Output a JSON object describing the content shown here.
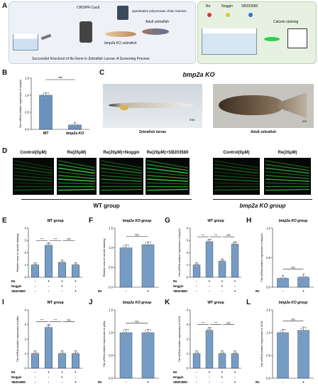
{
  "panels": {
    "A": "A",
    "B": "B",
    "C": "C",
    "D": "D",
    "E": "E",
    "F": "F",
    "G": "G",
    "H": "H",
    "I": "I",
    "J": "J",
    "K": "K",
    "L": "L"
  },
  "panelA": {
    "crispr": "CRISPR-Cas9",
    "qpcr": "quantitative polymerase chain reaction",
    "ko_zebrafish": "bmp2a KO zebrafish",
    "adult": "Adult zebrafish",
    "caption": "Successful Knockout of tfa Gene in Zebrafish Larvae: A Screening Process",
    "reagents": [
      "Re",
      "Noggin",
      "SB203580"
    ],
    "reagent_colors": [
      "#d33",
      "#e8c13a",
      "#3a6fd8"
    ],
    "calcein": "Calcein staining"
  },
  "panelC": {
    "title": "bmp2a KO",
    "larvae": "Zebrafish larvae",
    "adult": "Adult zebrafish",
    "scale1": "mm",
    "scale2": "cm"
  },
  "panelD": {
    "labels": [
      "Control(0μM)",
      "Re(20μM)",
      "Re(20μM)+Noggin",
      "Re(20μM)+SB203580",
      "Control(0μM)",
      "Re(20μM)"
    ],
    "wt_group": "WT group",
    "ko_group": "bmp2a KO group"
  },
  "chart_data": [
    {
      "panel": "B",
      "type": "bar",
      "categories": [
        "WT",
        "bmp2a KO"
      ],
      "values": [
        1.0,
        0.13
      ],
      "ylabel": "The mRNA relative expression of  bmp2a",
      "ylim": [
        0,
        1.5
      ],
      "yticks": [
        "0.0",
        "0.5",
        "1.0",
        "1.5"
      ],
      "sig": [
        "***"
      ],
      "color": "#3a6ea5"
    },
    {
      "panel": "E",
      "type": "bar",
      "title": "WT group",
      "categories": [
        "C",
        "Re",
        "Re+Noggin",
        "Re+SB203580"
      ],
      "values": [
        1.0,
        2.6,
        1.2,
        1.0
      ],
      "ylabel": "Relative area of calcein staining",
      "ylim": [
        0,
        4
      ],
      "yticks": [
        "0",
        "1",
        "2",
        "3",
        "4"
      ],
      "sig": [
        "***",
        "***",
        "NS"
      ],
      "rows": [
        {
          "name": "Re",
          "marks": [
            "-",
            "+",
            "+",
            "+"
          ]
        },
        {
          "name": "Noggin",
          "marks": [
            "-",
            "-",
            "+",
            "-"
          ]
        },
        {
          "name": "SB203580",
          "marks": [
            "-",
            "-",
            "-",
            "+"
          ]
        }
      ]
    },
    {
      "panel": "F",
      "type": "bar",
      "title": "bmp2a KO group",
      "categories": [
        "C",
        "Re"
      ],
      "values": [
        1.0,
        1.08
      ],
      "ylabel": "Relative area of calcein staining",
      "ylim": [
        0,
        1.5
      ],
      "yticks": [
        "0.0",
        "0.5",
        "1.0",
        "1.5"
      ],
      "sig": [
        "NS"
      ],
      "rows": [
        {
          "name": "Re",
          "marks": [
            "-",
            "+"
          ]
        }
      ]
    },
    {
      "panel": "G",
      "type": "bar",
      "title": "WT group",
      "categories": [
        "C",
        "Re",
        "Re+Noggin",
        "Re+SB203580"
      ],
      "values": [
        1.0,
        2.9,
        1.3,
        2.7
      ],
      "ylabel": "The mRNA relative expression of bmp2a",
      "ylim": [
        0,
        4
      ],
      "yticks": [
        "0",
        "1",
        "2",
        "3",
        "4"
      ],
      "sig": [
        "***",
        "***",
        "NS"
      ],
      "rows": [
        {
          "name": "Re",
          "marks": [
            "-",
            "+",
            "+",
            "+"
          ]
        },
        {
          "name": "Noggin",
          "marks": [
            "-",
            "-",
            "+",
            "-"
          ]
        },
        {
          "name": "SB203580",
          "marks": [
            "-",
            "-",
            "-",
            "+"
          ]
        }
      ]
    },
    {
      "panel": "H",
      "type": "bar",
      "title": "bmp2a KO group",
      "categories": [
        "C",
        "Re"
      ],
      "values": [
        0.15,
        0.17
      ],
      "ylabel": "The mRNA relative expression of bmp2a",
      "ylim": [
        0,
        1.0
      ],
      "yticks": [
        "0.0",
        "0.5",
        "1.0"
      ],
      "sig": [
        "NS"
      ],
      "rows": [
        {
          "name": "Re",
          "marks": [
            "-",
            "+"
          ]
        }
      ]
    },
    {
      "panel": "I",
      "type": "bar",
      "title": "WT group",
      "categories": [
        "C",
        "Re",
        "Re+Noggin",
        "Re+SB203580"
      ],
      "values": [
        1.0,
        2.8,
        1.0,
        1.0
      ],
      "ylabel": "The mRNA relative expression of p38a",
      "ylim": [
        0,
        4
      ],
      "yticks": [
        "0",
        "1",
        "2",
        "3",
        "4"
      ],
      "sig": [
        "***",
        "***",
        "NS"
      ],
      "rows": [
        {
          "name": "Re",
          "marks": [
            "-",
            "+",
            "+",
            "+"
          ]
        },
        {
          "name": "Noggin",
          "marks": [
            "-",
            "-",
            "+",
            "-"
          ]
        },
        {
          "name": "SB203580",
          "marks": [
            "-",
            "-",
            "-",
            "+"
          ]
        }
      ]
    },
    {
      "panel": "J",
      "type": "bar",
      "title": "bmp2a KO group",
      "categories": [
        "C",
        "Re"
      ],
      "values": [
        1.0,
        1.0
      ],
      "ylabel": "The mRNA relative expression of p38a",
      "ylim": [
        0,
        1.5
      ],
      "yticks": [
        "0.0",
        "0.5",
        "1.0",
        "1.5"
      ],
      "sig": [
        "NS"
      ],
      "rows": [
        {
          "name": "Re",
          "marks": [
            "-",
            "+"
          ]
        }
      ]
    },
    {
      "panel": "K",
      "type": "bar",
      "title": "WT group",
      "categories": [
        "C",
        "Re",
        "Re+Noggin",
        "Re+SB203580"
      ],
      "values": [
        1.0,
        2.6,
        1.0,
        1.0
      ],
      "ylabel": "The mRNA relative expression of OCN",
      "ylim": [
        0,
        4
      ],
      "yticks": [
        "0",
        "1",
        "2",
        "3",
        "4"
      ],
      "sig": [
        "***",
        "***",
        "NS"
      ],
      "rows": [
        {
          "name": "Re",
          "marks": [
            "-",
            "+",
            "+",
            "+"
          ]
        },
        {
          "name": "Noggin",
          "marks": [
            "-",
            "-",
            "+",
            "-"
          ]
        },
        {
          "name": "SB203580",
          "marks": [
            "-",
            "-",
            "-",
            "+"
          ]
        }
      ]
    },
    {
      "panel": "L",
      "type": "bar",
      "title": "bmp2a KO group",
      "categories": [
        "C",
        "Re"
      ],
      "values": [
        1.0,
        1.05
      ],
      "ylabel": "The mRNA relative expression of OCN",
      "ylim": [
        0,
        1.5
      ],
      "yticks": [
        "0.0",
        "0.5",
        "1.0",
        "1.5"
      ],
      "sig": [
        "NS"
      ],
      "rows": [
        {
          "name": "Re",
          "marks": [
            "-",
            "+"
          ]
        }
      ]
    }
  ]
}
